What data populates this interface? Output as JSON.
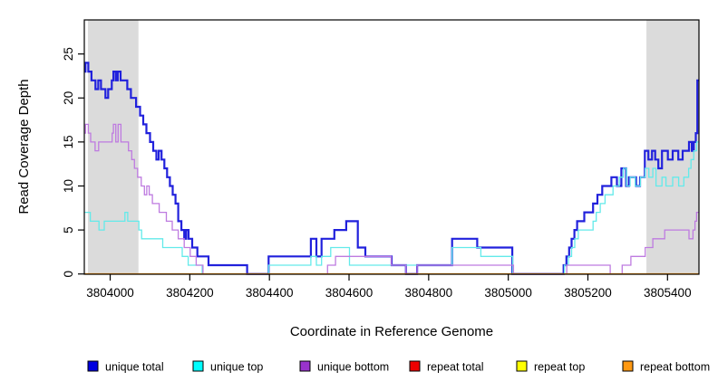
{
  "chart_data": {
    "type": "line",
    "subtype": "step",
    "title": "",
    "xlabel": "Coordinate in Reference Genome",
    "ylabel": "Read Coverage Depth",
    "grid": false,
    "background": "#ffffff",
    "box_color": "#000000",
    "xlim": [
      3803935,
      3805479
    ],
    "ylim": [
      -0.03,
      28.87
    ],
    "x_ticks": [
      3804000,
      3804200,
      3804400,
      3804600,
      3804800,
      3805000,
      3805200,
      3805400
    ],
    "x_tick_labels": [
      "3804000",
      "3804200",
      "3804400",
      "3804600",
      "3804800",
      "3805000",
      "3805200",
      "3805400"
    ],
    "y_ticks": [
      0,
      5,
      10,
      15,
      20,
      25
    ],
    "y_tick_labels": [
      "0",
      "5",
      "10",
      "15",
      "20",
      "25"
    ],
    "shaded_regions": [
      {
        "name": "left-repeat-region",
        "x0": 3803944,
        "x1": 3804071,
        "color": "#DBDBDB"
      },
      {
        "name": "right-repeat-region",
        "x0": 3805347,
        "x1": 3805479,
        "color": "#DBDBDB"
      }
    ],
    "series": [
      {
        "name": "unique total",
        "color": "#2121DC",
        "width": 2.2,
        "points": [
          [
            3803935,
            23
          ],
          [
            3803938,
            24
          ],
          [
            3803945,
            23
          ],
          [
            3803953,
            22
          ],
          [
            3803963,
            21
          ],
          [
            3803970,
            22
          ],
          [
            3803977,
            21
          ],
          [
            3803988,
            20
          ],
          [
            3803995,
            21
          ],
          [
            3804004,
            22
          ],
          [
            3804008,
            23
          ],
          [
            3804014,
            22
          ],
          [
            3804019,
            23
          ],
          [
            3804026,
            22
          ],
          [
            3804043,
            21
          ],
          [
            3804052,
            20
          ],
          [
            3804065,
            19
          ],
          [
            3804075,
            18
          ],
          [
            3804083,
            17
          ],
          [
            3804091,
            16
          ],
          [
            3804100,
            15
          ],
          [
            3804108,
            14
          ],
          [
            3804116,
            13
          ],
          [
            3804122,
            14
          ],
          [
            3804129,
            13
          ],
          [
            3804136,
            12
          ],
          [
            3804143,
            11
          ],
          [
            3804150,
            10
          ],
          [
            3804157,
            9
          ],
          [
            3804164,
            8
          ],
          [
            3804171,
            6
          ],
          [
            3804179,
            5
          ],
          [
            3804186,
            4
          ],
          [
            3804191,
            5
          ],
          [
            3804197,
            4
          ],
          [
            3804206,
            3
          ],
          [
            3804219,
            2
          ],
          [
            3804247,
            1
          ],
          [
            3804344,
            0
          ],
          [
            3804398,
            2
          ],
          [
            3804504,
            4
          ],
          [
            3804518,
            2
          ],
          [
            3804531,
            4
          ],
          [
            3804563,
            5
          ],
          [
            3804593,
            6
          ],
          [
            3804622,
            3
          ],
          [
            3804641,
            2
          ],
          [
            3804707,
            1
          ],
          [
            3804743,
            0
          ],
          [
            3804771,
            1
          ],
          [
            3804859,
            4
          ],
          [
            3804922,
            3
          ],
          [
            3805010,
            0
          ],
          [
            3805139,
            1
          ],
          [
            3805146,
            2
          ],
          [
            3805153,
            3
          ],
          [
            3805159,
            4
          ],
          [
            3805166,
            5
          ],
          [
            3805173,
            6
          ],
          [
            3805191,
            7
          ],
          [
            3805213,
            8
          ],
          [
            3805224,
            9
          ],
          [
            3805236,
            10
          ],
          [
            3805259,
            11
          ],
          [
            3805273,
            10
          ],
          [
            3805284,
            12
          ],
          [
            3805296,
            10
          ],
          [
            3805303,
            11
          ],
          [
            3805321,
            10
          ],
          [
            3805331,
            11
          ],
          [
            3805343,
            14
          ],
          [
            3805352,
            13
          ],
          [
            3805361,
            14
          ],
          [
            3805369,
            13
          ],
          [
            3805377,
            12
          ],
          [
            3805386,
            14
          ],
          [
            3805401,
            13
          ],
          [
            3805413,
            14
          ],
          [
            3805427,
            13
          ],
          [
            3805438,
            14
          ],
          [
            3805454,
            15
          ],
          [
            3805461,
            14
          ],
          [
            3805466,
            15
          ],
          [
            3805471,
            16
          ],
          [
            3805475,
            22
          ]
        ]
      },
      {
        "name": "unique top",
        "color": "#63EAEA",
        "width": 1.3,
        "points": [
          [
            3803935,
            7
          ],
          [
            3803950,
            6
          ],
          [
            3803972,
            5
          ],
          [
            3803985,
            6
          ],
          [
            3804037,
            7
          ],
          [
            3804044,
            6
          ],
          [
            3804072,
            5
          ],
          [
            3804079,
            4
          ],
          [
            3804132,
            3
          ],
          [
            3804181,
            2
          ],
          [
            3804196,
            1
          ],
          [
            3804231,
            0
          ],
          [
            3804398,
            1
          ],
          [
            3804504,
            2
          ],
          [
            3804518,
            1
          ],
          [
            3804531,
            2
          ],
          [
            3804554,
            3
          ],
          [
            3804601,
            1
          ],
          [
            3804859,
            3
          ],
          [
            3804931,
            2
          ],
          [
            3805011,
            0
          ],
          [
            3805141,
            1
          ],
          [
            3805151,
            2
          ],
          [
            3805159,
            3
          ],
          [
            3805167,
            4
          ],
          [
            3805176,
            5
          ],
          [
            3805213,
            6
          ],
          [
            3805221,
            7
          ],
          [
            3805231,
            8
          ],
          [
            3805243,
            9
          ],
          [
            3805263,
            10
          ],
          [
            3805279,
            11
          ],
          [
            3805289,
            12
          ],
          [
            3805297,
            10
          ],
          [
            3805306,
            11
          ],
          [
            3805319,
            10
          ],
          [
            3805332,
            11
          ],
          [
            3805344,
            12
          ],
          [
            3805353,
            11
          ],
          [
            3805363,
            12
          ],
          [
            3805371,
            10
          ],
          [
            3805386,
            11
          ],
          [
            3805396,
            10
          ],
          [
            3805413,
            11
          ],
          [
            3805428,
            10
          ],
          [
            3805441,
            11
          ],
          [
            3805453,
            12
          ],
          [
            3805459,
            13
          ],
          [
            3805466,
            14
          ],
          [
            3805473,
            15
          ]
        ]
      },
      {
        "name": "unique bottom",
        "color": "#BE7BE0",
        "width": 1.3,
        "points": [
          [
            3803935,
            16
          ],
          [
            3803938,
            17
          ],
          [
            3803945,
            16
          ],
          [
            3803951,
            15
          ],
          [
            3803962,
            14
          ],
          [
            3803971,
            15
          ],
          [
            3804005,
            16
          ],
          [
            3804008,
            17
          ],
          [
            3804014,
            15
          ],
          [
            3804020,
            17
          ],
          [
            3804027,
            15
          ],
          [
            3804046,
            14
          ],
          [
            3804054,
            13
          ],
          [
            3804061,
            12
          ],
          [
            3804069,
            11
          ],
          [
            3804078,
            10
          ],
          [
            3804086,
            9
          ],
          [
            3804092,
            10
          ],
          [
            3804098,
            9
          ],
          [
            3804106,
            8
          ],
          [
            3804123,
            7
          ],
          [
            3804141,
            6
          ],
          [
            3804156,
            5
          ],
          [
            3804171,
            4
          ],
          [
            3804186,
            3
          ],
          [
            3804201,
            2
          ],
          [
            3804216,
            1
          ],
          [
            3804233,
            0
          ],
          [
            3804546,
            1
          ],
          [
            3804566,
            2
          ],
          [
            3804706,
            1
          ],
          [
            3804743,
            0
          ],
          [
            3804771,
            1
          ],
          [
            3805013,
            0
          ],
          [
            3805147,
            1
          ],
          [
            3805256,
            0
          ],
          [
            3805286,
            1
          ],
          [
            3805308,
            2
          ],
          [
            3805344,
            3
          ],
          [
            3805363,
            4
          ],
          [
            3805393,
            5
          ],
          [
            3805454,
            4
          ],
          [
            3805464,
            5
          ],
          [
            3805469,
            6
          ],
          [
            3805473,
            7
          ]
        ]
      },
      {
        "name": "repeat total",
        "color": "#E60000",
        "width": 1.1,
        "points": [
          [
            3803935,
            0
          ]
        ]
      },
      {
        "name": "repeat top",
        "color": "#FFFF00",
        "width": 1.1,
        "points": [
          [
            3803935,
            0
          ]
        ]
      },
      {
        "name": "repeat bottom",
        "color": "#FF9100",
        "width": 1.6,
        "points": [
          [
            3803935,
            0
          ]
        ]
      }
    ],
    "legend_position": "bottom",
    "legend": {
      "items": [
        {
          "label": "unique total",
          "color": "#0000E0"
        },
        {
          "label": "unique top",
          "color": "#00FFFF"
        },
        {
          "label": "unique bottom",
          "color": "#9933CC"
        },
        {
          "label": "repeat total",
          "color": "#EE0000"
        },
        {
          "label": "repeat top",
          "color": "#FFFF00"
        },
        {
          "label": "repeat bottom",
          "color": "#FF9912"
        }
      ]
    }
  }
}
